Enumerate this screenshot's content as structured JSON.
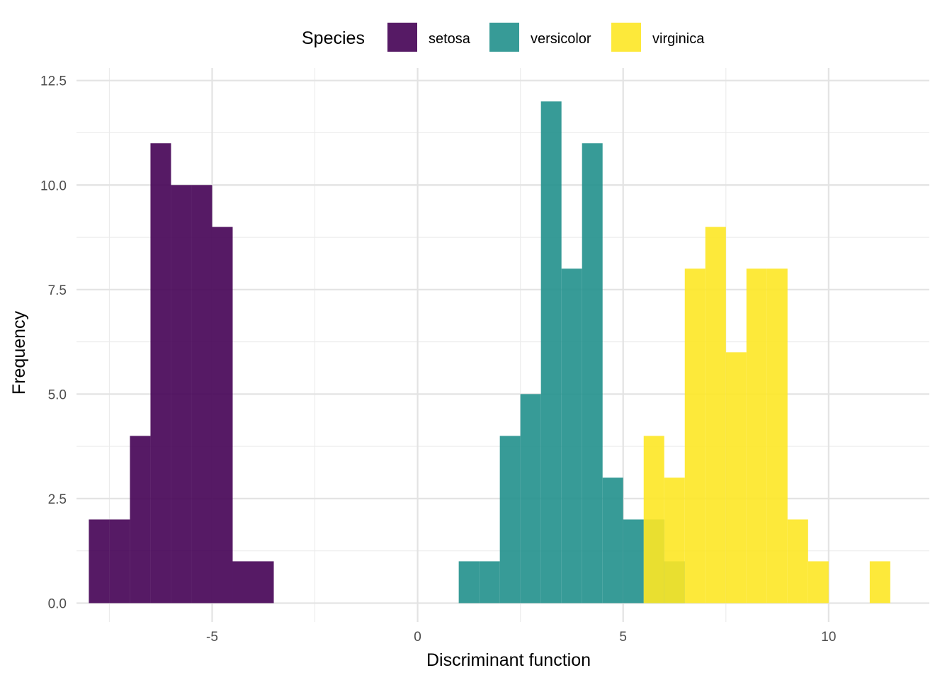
{
  "chart_data": {
    "type": "bar",
    "subtype": "histogram",
    "xlabel": "Discriminant function",
    "ylabel": "Frequency",
    "xlim": [
      -8.3,
      12.45
    ],
    "ylim": [
      -0.45,
      12.8
    ],
    "x_ticks": [
      -5,
      0,
      5,
      10
    ],
    "x_tick_labels": [
      "-5",
      "0",
      "5",
      "10"
    ],
    "y_ticks": [
      0,
      2.5,
      5,
      7.5,
      10,
      12.5
    ],
    "y_tick_labels": [
      "0.0",
      "2.5",
      "5.0",
      "7.5",
      "10.0",
      "12.5"
    ],
    "bin_width": 0.5,
    "grid": true,
    "legend": {
      "title": "Species",
      "position": "top"
    },
    "series": [
      {
        "name": "setosa",
        "color": "#440154",
        "bins": [
          [
            -7.75,
            2
          ],
          [
            -7.25,
            2
          ],
          [
            -6.75,
            4
          ],
          [
            -6.25,
            11
          ],
          [
            -5.75,
            10
          ],
          [
            -5.25,
            10
          ],
          [
            -4.75,
            9
          ],
          [
            -4.25,
            1
          ],
          [
            -3.75,
            1
          ]
        ]
      },
      {
        "name": "versicolor",
        "color": "#21908C",
        "bins": [
          [
            1.25,
            1
          ],
          [
            1.75,
            1
          ],
          [
            2.25,
            4
          ],
          [
            2.75,
            5
          ],
          [
            3.25,
            12
          ],
          [
            3.75,
            8
          ],
          [
            4.25,
            11
          ],
          [
            4.75,
            3
          ],
          [
            5.25,
            2
          ],
          [
            5.75,
            2
          ],
          [
            6.25,
            1
          ]
        ]
      },
      {
        "name": "virginica",
        "color": "#FDE725",
        "bins": [
          [
            5.75,
            4
          ],
          [
            6.25,
            3
          ],
          [
            6.75,
            8
          ],
          [
            7.25,
            9
          ],
          [
            7.75,
            6
          ],
          [
            8.25,
            8
          ],
          [
            8.75,
            8
          ],
          [
            9.25,
            2
          ],
          [
            9.75,
            1
          ],
          [
            11.25,
            1
          ]
        ]
      }
    ]
  }
}
